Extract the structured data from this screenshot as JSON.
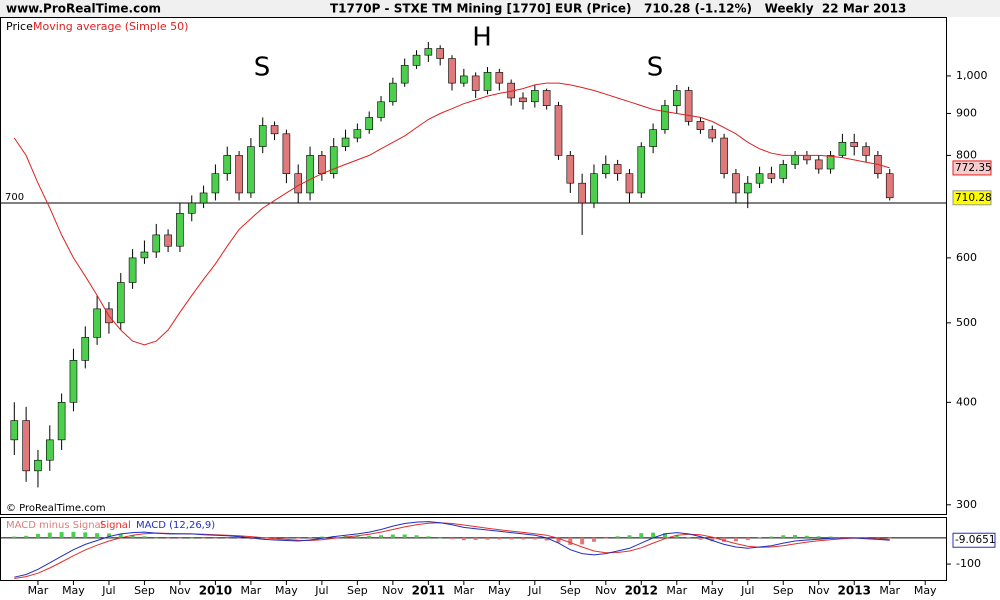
{
  "chart_data": {
    "type": "candlestick",
    "site": "www.ProRealTime.com",
    "title": "T1770P - STXE TM Mining [1770] EUR (Price)   710.28 (-1.12%)   Weekly  22 Mar 2013",
    "copyright": "© ProRealTime.com",
    "categories": [
      null,
      null,
      "Mar",
      null,
      null,
      "May",
      null,
      null,
      "Jul",
      null,
      null,
      "Sep",
      null,
      null,
      "Nov",
      null,
      null,
      "2010",
      null,
      null,
      "Mar",
      null,
      null,
      "May",
      null,
      null,
      "Jul",
      null,
      null,
      "Sep",
      null,
      null,
      "Nov",
      null,
      null,
      "2011",
      null,
      null,
      "Mar",
      null,
      null,
      "May",
      null,
      null,
      "Jul",
      null,
      null,
      "Sep",
      null,
      null,
      "Nov",
      null,
      null,
      "2012",
      null,
      null,
      "Mar",
      null,
      null,
      "May",
      null,
      null,
      "Jul",
      null,
      null,
      "Sep",
      null,
      null,
      "Nov",
      null,
      null,
      "2013",
      null,
      null,
      "Mar",
      null,
      null,
      "May"
    ],
    "price": {
      "name": "Price",
      "up_color": "#4ccf4c",
      "down_color": "#e07a7a",
      "open": [
        360,
        380,
        330,
        340,
        360,
        400,
        450,
        480,
        520,
        500,
        560,
        600,
        610,
        640,
        620,
        680,
        700,
        720,
        760,
        800,
        720,
        820,
        870,
        850,
        760,
        720,
        800,
        760,
        820,
        840,
        860,
        890,
        930,
        980,
        1030,
        1060,
        1080,
        1050,
        980,
        1000,
        960,
        1010,
        980,
        940,
        930,
        960,
        920,
        800,
        740,
        700,
        760,
        780,
        760,
        720,
        820,
        860,
        920,
        960,
        880,
        860,
        840,
        760,
        720,
        740,
        760,
        750,
        780,
        800,
        790,
        770,
        800,
        830,
        820,
        800,
        760,
        null,
        null,
        null
      ],
      "high": [
        400,
        395,
        350,
        375,
        410,
        465,
        495,
        540,
        530,
        575,
        615,
        630,
        660,
        650,
        700,
        715,
        735,
        780,
        820,
        810,
        840,
        890,
        880,
        860,
        780,
        820,
        810,
        840,
        860,
        875,
        905,
        945,
        995,
        1050,
        1075,
        1100,
        1090,
        1060,
        1020,
        1010,
        1025,
        1020,
        990,
        955,
        975,
        965,
        930,
        810,
        760,
        780,
        800,
        790,
        770,
        830,
        875,
        935,
        975,
        970,
        890,
        870,
        850,
        770,
        755,
        775,
        775,
        790,
        810,
        810,
        800,
        810,
        850,
        850,
        830,
        810,
        770,
        null,
        null,
        null
      ],
      "low": [
        345,
        320,
        315,
        330,
        350,
        390,
        440,
        470,
        485,
        490,
        550,
        590,
        600,
        610,
        610,
        665,
        690,
        705,
        745,
        705,
        710,
        805,
        835,
        740,
        700,
        705,
        745,
        750,
        810,
        830,
        850,
        880,
        920,
        970,
        1020,
        1040,
        1030,
        960,
        970,
        940,
        950,
        960,
        920,
        910,
        915,
        910,
        790,
        720,
        640,
        690,
        750,
        745,
        700,
        710,
        805,
        850,
        900,
        870,
        850,
        830,
        750,
        700,
        690,
        730,
        740,
        740,
        770,
        780,
        760,
        760,
        795,
        800,
        785,
        750,
        705,
        null,
        null,
        null
      ],
      "close": [
        380,
        330,
        340,
        360,
        400,
        450,
        480,
        520,
        500,
        560,
        600,
        610,
        640,
        620,
        680,
        700,
        720,
        760,
        800,
        720,
        820,
        870,
        850,
        760,
        720,
        800,
        760,
        820,
        840,
        860,
        890,
        930,
        980,
        1030,
        1060,
        1080,
        1050,
        980,
        1000,
        960,
        1010,
        980,
        940,
        930,
        960,
        920,
        800,
        740,
        700,
        760,
        780,
        760,
        720,
        820,
        860,
        920,
        960,
        880,
        860,
        840,
        760,
        720,
        740,
        760,
        750,
        780,
        800,
        790,
        770,
        800,
        830,
        820,
        800,
        760,
        710.28,
        null,
        null,
        null
      ]
    },
    "ma": {
      "name": "Moving average (Simple 50)",
      "color": "#e02020",
      "values": [
        840,
        800,
        740,
        690,
        640,
        600,
        570,
        540,
        510,
        490,
        475,
        470,
        475,
        490,
        515,
        540,
        565,
        590,
        620,
        650,
        670,
        690,
        705,
        720,
        735,
        748,
        760,
        770,
        780,
        790,
        800,
        815,
        830,
        845,
        865,
        885,
        900,
        912,
        925,
        935,
        945,
        952,
        958,
        965,
        975,
        980,
        980,
        975,
        968,
        960,
        950,
        940,
        930,
        920,
        910,
        905,
        900,
        895,
        890,
        880,
        865,
        850,
        830,
        815,
        805,
        800,
        800,
        800,
        800,
        798,
        795,
        790,
        785,
        780,
        772.35,
        null,
        null,
        null
      ]
    },
    "ylim": [
      294,
      1170
    ],
    "yticks": [
      300,
      400,
      500,
      600,
      800,
      900,
      {
        "value": 1000,
        "label": "1,000"
      }
    ],
    "hline": 700,
    "annotations": [
      "S",
      "H",
      "S"
    ],
    "macd": {
      "ylim": [
        -157,
        72
      ],
      "yticks": [
        -100
      ],
      "hist": {
        "name": "MACD minus Signal",
        "up_color": "#4ccf4c",
        "down_color": "#e07a7a",
        "values": [
          5,
          8,
          15,
          20,
          22,
          23,
          21,
          18,
          17,
          15,
          10,
          6,
          0,
          -2,
          -1,
          0,
          -2,
          -2,
          -2,
          -3,
          -5,
          -6,
          -5,
          -4,
          -3,
          2,
          5,
          7,
          7,
          7,
          8,
          10,
          13,
          13,
          10,
          6,
          0,
          -5,
          -9,
          -8,
          -7,
          -6,
          -6,
          -6,
          -6,
          -10,
          -18,
          -27,
          -25,
          -15,
          -3,
          6,
          10,
          18,
          20,
          18,
          10,
          1,
          -7,
          -13,
          -15,
          -13,
          -8,
          1,
          5,
          10,
          11,
          8,
          6,
          5,
          3,
          1,
          -1,
          -2,
          -3.0651,
          null,
          null,
          null
        ]
      },
      "signal": {
        "name": "Signal",
        "color": "#e03030",
        "values": [
          -155,
          -148,
          -135,
          -115,
          -92,
          -68,
          -46,
          -28,
          -12,
          0,
          10,
          16,
          18,
          17,
          16,
          15,
          14,
          12,
          10,
          8,
          5,
          1,
          -3,
          -6,
          -9,
          -10,
          -7,
          -2,
          3,
          8,
          14,
          22,
          32,
          42,
          50,
          56,
          58,
          55,
          49,
          43,
          37,
          31,
          26,
          21,
          16,
          10,
          -2,
          -18,
          -35,
          -50,
          -57,
          -56,
          -50,
          -38,
          -20,
          -3,
          10,
          14,
          12,
          3,
          -10,
          -22,
          -32,
          -36,
          -35,
          -30,
          -23,
          -16,
          -11,
          -7,
          -3,
          -1,
          -2,
          -4,
          -6,
          null,
          null,
          null
        ]
      },
      "macd": {
        "name": "MACD (12,26,9)",
        "color": "#2030c0",
        "values": [
          -150,
          -140,
          -120,
          -95,
          -70,
          -45,
          -25,
          -10,
          5,
          15,
          20,
          22,
          18,
          15,
          15,
          15,
          12,
          10,
          8,
          5,
          0,
          -5,
          -8,
          -10,
          -12,
          -8,
          -2,
          5,
          10,
          15,
          22,
          32,
          45,
          55,
          60,
          62,
          58,
          50,
          40,
          35,
          30,
          25,
          20,
          15,
          10,
          0,
          -20,
          -45,
          -60,
          -65,
          -60,
          -50,
          -40,
          -20,
          0,
          15,
          20,
          15,
          5,
          -10,
          -25,
          -35,
          -40,
          -35,
          -30,
          -20,
          -12,
          -8,
          -5,
          -2,
          0,
          0,
          -3,
          -6,
          -9.0651,
          null,
          null,
          null
        ]
      }
    }
  }
}
